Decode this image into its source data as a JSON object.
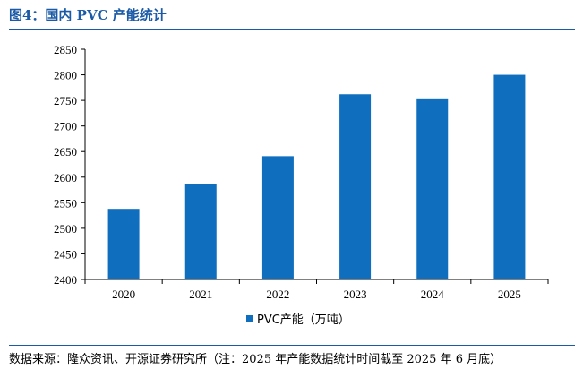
{
  "header": {
    "title": "图4：国内 PVC 产能统计"
  },
  "footer": {
    "source": "数据来源：隆众资讯、开源证券研究所（注：2025 年产能数据统计时间截至 2025 年 6 月底）"
  },
  "colors": {
    "bar": "#0f6ebe",
    "accent": "#1a5aa6"
  },
  "chart_data": {
    "type": "bar",
    "title": "国内 PVC 产能统计",
    "categories": [
      "2020",
      "2021",
      "2022",
      "2023",
      "2024",
      "2025"
    ],
    "series": [
      {
        "name": "PVC产能（万吨）",
        "values": [
          2538,
          2586,
          2641,
          2762,
          2754,
          2800
        ]
      }
    ],
    "ylim": [
      2400,
      2850
    ],
    "yticks": [
      "2400",
      "2450",
      "2500",
      "2550",
      "2600",
      "2650",
      "2700",
      "2750",
      "2800",
      "2850"
    ],
    "xlabel": "",
    "ylabel": "",
    "legend_position": "bottom",
    "grid": false
  }
}
